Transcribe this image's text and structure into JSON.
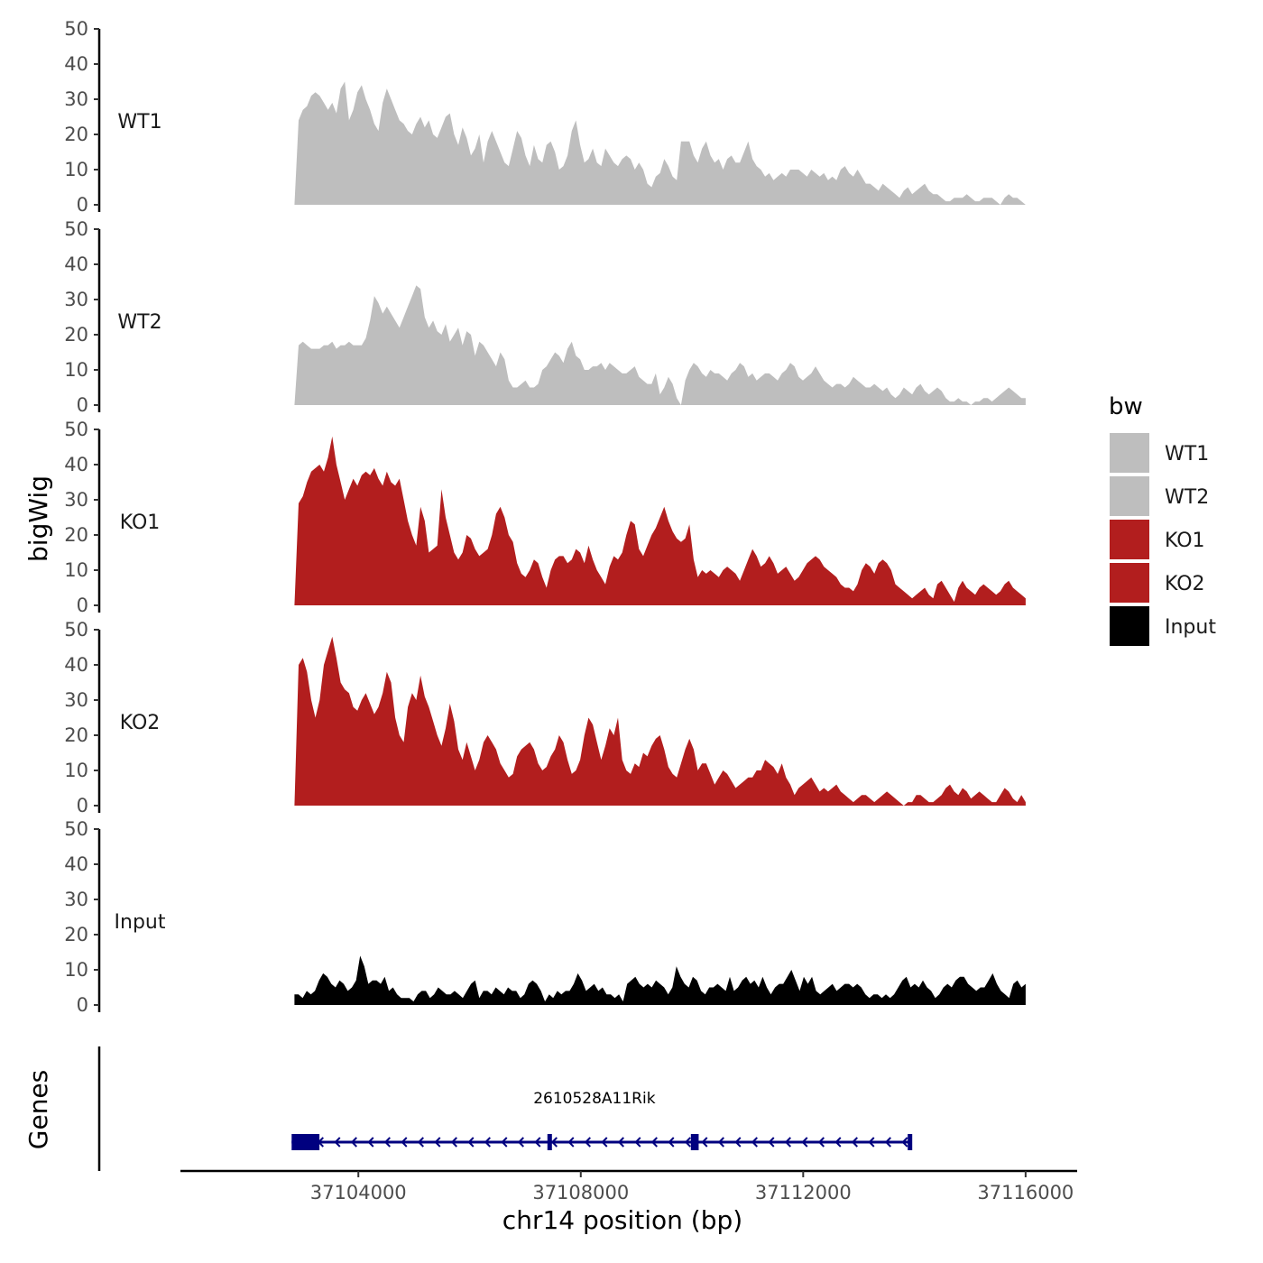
{
  "chart_data": {
    "type": "area",
    "title": "",
    "ylabel": "bigWig",
    "xlabel": "chr14 position (bp)",
    "ylim": [
      0,
      50
    ],
    "yticks": [
      0,
      10,
      20,
      30,
      40,
      50
    ],
    "xlim": [
      37100800,
      37116700
    ],
    "xticks": [
      37104000,
      37108000,
      37112000,
      37116000
    ],
    "xtick_labels": [
      "37104000",
      "37108000",
      "37112000",
      "37116000"
    ],
    "legend": {
      "title": "bw",
      "position": "right",
      "entries": [
        {
          "label": "WT1",
          "color": "#bebebe"
        },
        {
          "label": "WT2",
          "color": "#bebebe"
        },
        {
          "label": "KO1",
          "color": "#b21e1e"
        },
        {
          "label": "KO2",
          "color": "#b21e1e"
        },
        {
          "label": "Input",
          "color": "#000000"
        }
      ]
    },
    "series": [
      {
        "name": "WT1",
        "color": "#bebebe",
        "x_start": 37102850,
        "x_end": 37116000,
        "values": [
          0,
          24,
          27,
          28,
          31,
          32,
          31,
          29,
          27,
          29,
          26,
          33,
          35,
          24,
          27,
          32,
          34,
          30,
          27,
          23,
          21,
          29,
          33,
          30,
          27,
          24,
          23,
          21,
          20,
          23,
          25,
          22,
          24,
          20,
          19,
          22,
          25,
          26,
          20,
          17,
          22,
          19,
          14,
          16,
          20,
          12,
          18,
          21,
          18,
          15,
          12,
          11,
          16,
          21,
          19,
          14,
          11,
          17,
          13,
          12,
          17,
          18,
          15,
          10,
          11,
          14,
          21,
          24,
          17,
          12,
          13,
          16,
          12,
          11,
          16,
          14,
          12,
          11,
          13,
          14,
          13,
          10,
          12,
          10,
          6,
          5,
          8,
          9,
          13,
          11,
          8,
          7,
          18,
          18,
          18,
          14,
          12,
          16,
          18,
          14,
          12,
          13,
          10,
          13,
          14,
          12,
          12,
          15,
          18,
          13,
          11,
          10,
          8,
          9,
          7,
          8,
          9,
          8,
          10,
          10,
          10,
          9,
          8,
          10,
          9,
          8,
          9,
          7,
          8,
          7,
          10,
          11,
          9,
          8,
          10,
          8,
          6,
          6,
          5,
          4,
          6,
          5,
          4,
          3,
          2,
          4,
          5,
          3,
          4,
          5,
          6,
          4,
          3,
          3,
          2,
          1,
          1,
          2,
          2,
          2,
          3,
          2,
          1,
          1,
          2,
          2,
          2,
          1,
          0,
          2,
          3,
          2,
          2,
          1,
          0
        ]
      },
      {
        "name": "WT2",
        "color": "#bebebe",
        "x_start": 37102850,
        "x_end": 37116000,
        "values": [
          0,
          17,
          18,
          17,
          16,
          16,
          16,
          17,
          17,
          18,
          16,
          17,
          17,
          18,
          17,
          17,
          17,
          19,
          24,
          31,
          29,
          26,
          28,
          26,
          24,
          22,
          25,
          28,
          31,
          34,
          33,
          25,
          22,
          24,
          21,
          20,
          23,
          18,
          20,
          22,
          17,
          21,
          20,
          14,
          18,
          17,
          15,
          13,
          11,
          15,
          13,
          7,
          5,
          5,
          6,
          7,
          5,
          5,
          6,
          10,
          11,
          13,
          15,
          14,
          12,
          16,
          18,
          14,
          13,
          10,
          10,
          11,
          11,
          12,
          10,
          12,
          11,
          10,
          9,
          9,
          10,
          11,
          8,
          7,
          6,
          6,
          9,
          3,
          5,
          8,
          6,
          2,
          0,
          7,
          10,
          12,
          11,
          9,
          8,
          10,
          9,
          9,
          8,
          7,
          9,
          10,
          12,
          11,
          8,
          9,
          7,
          8,
          9,
          9,
          8,
          7,
          9,
          10,
          12,
          11,
          8,
          7,
          8,
          9,
          11,
          9,
          7,
          6,
          5,
          6,
          6,
          5,
          6,
          8,
          7,
          6,
          5,
          5,
          6,
          5,
          4,
          5,
          3,
          2,
          3,
          5,
          4,
          3,
          5,
          6,
          4,
          3,
          4,
          5,
          4,
          2,
          1,
          1,
          2,
          1,
          1,
          0,
          1,
          1,
          2,
          2,
          1,
          2,
          3,
          4,
          5,
          4,
          3,
          2,
          2
        ]
      },
      {
        "name": "KO1",
        "color": "#b21e1e",
        "x_start": 37102850,
        "x_end": 37116000,
        "values": [
          0,
          29,
          31,
          35,
          38,
          39,
          40,
          38,
          42,
          48,
          40,
          35,
          30,
          33,
          36,
          34,
          37,
          38,
          37,
          39,
          36,
          34,
          38,
          35,
          34,
          36,
          30,
          24,
          20,
          17,
          28,
          24,
          15,
          16,
          17,
          33,
          25,
          20,
          15,
          13,
          15,
          20,
          19,
          16,
          14,
          15,
          16,
          20,
          26,
          28,
          25,
          20,
          18,
          12,
          9,
          8,
          10,
          13,
          12,
          8,
          5,
          10,
          13,
          14,
          14,
          12,
          13,
          16,
          15,
          12,
          17,
          13,
          10,
          8,
          6,
          11,
          14,
          13,
          15,
          20,
          24,
          23,
          16,
          14,
          17,
          20,
          22,
          25,
          28,
          24,
          21,
          19,
          18,
          19,
          23,
          13,
          8,
          10,
          9,
          10,
          9,
          8,
          10,
          11,
          10,
          9,
          7,
          10,
          13,
          16,
          14,
          11,
          12,
          14,
          12,
          9,
          10,
          11,
          9,
          7,
          8,
          10,
          12,
          13,
          14,
          13,
          11,
          10,
          9,
          8,
          6,
          5,
          5,
          4,
          6,
          10,
          12,
          11,
          9,
          12,
          13,
          12,
          10,
          6,
          5,
          4,
          3,
          2,
          3,
          4,
          5,
          3,
          2,
          6,
          7,
          5,
          3,
          1,
          5,
          7,
          5,
          4,
          3,
          5,
          6,
          5,
          4,
          3,
          4,
          6,
          7,
          5,
          4,
          3,
          2
        ]
      },
      {
        "name": "KO2",
        "color": "#b21e1e",
        "x_start": 37102850,
        "x_end": 37116000,
        "values": [
          0,
          40,
          42,
          38,
          30,
          25,
          30,
          40,
          44,
          48,
          42,
          35,
          33,
          32,
          28,
          27,
          30,
          32,
          29,
          26,
          28,
          32,
          38,
          35,
          25,
          20,
          18,
          28,
          32,
          30,
          37,
          31,
          28,
          24,
          20,
          17,
          22,
          29,
          24,
          16,
          13,
          18,
          14,
          10,
          13,
          18,
          20,
          18,
          16,
          12,
          10,
          8,
          9,
          14,
          16,
          17,
          18,
          16,
          12,
          10,
          11,
          14,
          16,
          20,
          18,
          13,
          9,
          10,
          13,
          20,
          25,
          23,
          18,
          13,
          17,
          22,
          20,
          25,
          13,
          10,
          9,
          12,
          11,
          15,
          14,
          17,
          19,
          20,
          16,
          11,
          9,
          8,
          12,
          16,
          19,
          16,
          10,
          12,
          12,
          9,
          6,
          8,
          10,
          9,
          7,
          5,
          6,
          7,
          8,
          8,
          10,
          10,
          13,
          12,
          11,
          9,
          12,
          8,
          6,
          3,
          5,
          6,
          7,
          8,
          6,
          4,
          5,
          4,
          5,
          6,
          4,
          3,
          2,
          1,
          2,
          3,
          3,
          2,
          1,
          2,
          3,
          4,
          3,
          2,
          1,
          0,
          1,
          1,
          3,
          3,
          2,
          1,
          1,
          2,
          3,
          5,
          6,
          4,
          3,
          5,
          4,
          2,
          3,
          4,
          3,
          2,
          1,
          1,
          3,
          5,
          4,
          2,
          1,
          3,
          1
        ]
      },
      {
        "name": "Input",
        "color": "#000000",
        "x_start": 37102850,
        "x_end": 37116000,
        "values": [
          3,
          3,
          2,
          4,
          3,
          4,
          7,
          9,
          8,
          6,
          5,
          7,
          6,
          4,
          5,
          7,
          14,
          11,
          6,
          7,
          7,
          6,
          8,
          4,
          5,
          3,
          2,
          2,
          2,
          1,
          3,
          4,
          4,
          2,
          3,
          5,
          4,
          3,
          3,
          4,
          3,
          2,
          4,
          6,
          7,
          2,
          4,
          4,
          3,
          5,
          4,
          3,
          5,
          4,
          4,
          2,
          3,
          6,
          7,
          6,
          4,
          1,
          3,
          2,
          4,
          3,
          4,
          4,
          6,
          9,
          7,
          4,
          5,
          6,
          4,
          5,
          3,
          3,
          2,
          3,
          1,
          6,
          7,
          8,
          6,
          5,
          6,
          5,
          7,
          6,
          5,
          3,
          5,
          11,
          8,
          6,
          5,
          8,
          7,
          4,
          3,
          5,
          5,
          6,
          5,
          4,
          8,
          4,
          5,
          7,
          8,
          6,
          7,
          5,
          8,
          5,
          3,
          5,
          6,
          6,
          8,
          10,
          7,
          4,
          8,
          6,
          8,
          4,
          3,
          4,
          5,
          6,
          4,
          5,
          6,
          6,
          5,
          6,
          5,
          3,
          2,
          3,
          3,
          2,
          3,
          2,
          3,
          5,
          7,
          8,
          5,
          6,
          5,
          7,
          5,
          4,
          2,
          3,
          5,
          6,
          5,
          7,
          8,
          8,
          6,
          5,
          4,
          5,
          5,
          7,
          9,
          6,
          4,
          3,
          2,
          6,
          7,
          5,
          6
        ]
      }
    ],
    "genes": {
      "ylabel": "Genes",
      "items": [
        {
          "name": "2610528A11Rik",
          "strand": "-",
          "start": 37102800,
          "end": 37113950,
          "exons": [
            [
              37102800,
              37103300
            ],
            [
              37107400,
              37107480
            ],
            [
              37109980,
              37110120
            ],
            [
              37113880,
              37113950
            ]
          ]
        }
      ]
    }
  }
}
